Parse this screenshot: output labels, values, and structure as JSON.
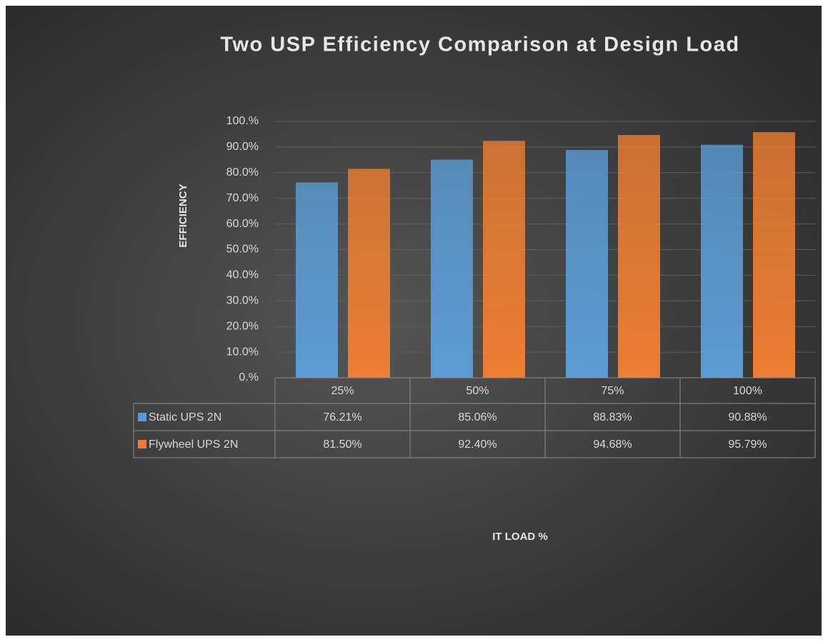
{
  "chart_data": {
    "type": "bar",
    "title": "Two USP Efficiency Comparison at Design Load",
    "y_label": "EFFICIENCY",
    "x_label": "IT LOAD %",
    "categories": [
      "25%",
      "50%",
      "75%",
      "100%"
    ],
    "series": [
      {
        "name": "Static UPS 2N",
        "color": "#5b9bd5",
        "values": [
          76.21,
          85.06,
          88.83,
          90.88
        ],
        "value_labels": [
          "76.21%",
          "85.06%",
          "88.83%",
          "90.88%"
        ]
      },
      {
        "name": "Flywheel UPS 2N",
        "color": "#ed7d31",
        "values": [
          81.5,
          92.4,
          94.68,
          95.79
        ],
        "value_labels": [
          "81.50%",
          "92.40%",
          "94.68%",
          "95.79%"
        ]
      }
    ],
    "ylim": [
      0,
      100
    ],
    "yticks": [
      {
        "value": 0,
        "label": "0.%"
      },
      {
        "value": 10,
        "label": "10.0%"
      },
      {
        "value": 20,
        "label": "20.0%"
      },
      {
        "value": 30,
        "label": "30.0%"
      },
      {
        "value": 40,
        "label": "40.0%"
      },
      {
        "value": 50,
        "label": "50.0%"
      },
      {
        "value": 60,
        "label": "60.0%"
      },
      {
        "value": 70,
        "label": "70.0%"
      },
      {
        "value": 80,
        "label": "80.0%"
      },
      {
        "value": 90,
        "label": "90.0%"
      },
      {
        "value": 100,
        "label": "100.%"
      }
    ],
    "grid": true,
    "data_table": true
  }
}
